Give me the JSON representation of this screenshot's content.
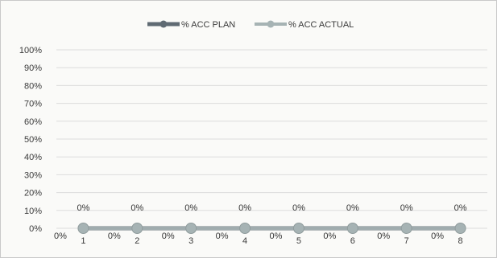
{
  "chart_data": {
    "type": "line",
    "x": [
      "1",
      "2",
      "3",
      "4",
      "5",
      "6",
      "7",
      "8"
    ],
    "series": [
      {
        "name": "% ACC PLAN",
        "values": [
          0,
          0,
          0,
          0,
          0,
          0,
          0,
          0
        ],
        "labels": [
          "0%",
          "0%",
          "0%",
          "0%",
          "0%",
          "0%",
          "0%",
          "0%"
        ],
        "color": "#5f6a73"
      },
      {
        "name": "% ACC ACTUAL",
        "values": [
          0,
          0,
          0,
          0,
          0,
          0,
          0,
          0
        ],
        "labels": [
          "0%",
          "0%",
          "0%",
          "0%",
          "0%",
          "0%",
          "0%",
          "0%"
        ],
        "color": "#a6b3b4"
      }
    ],
    "y_ticks": [
      "0%",
      "10%",
      "20%",
      "30%",
      "40%",
      "50%",
      "60%",
      "70%",
      "80%",
      "90%",
      "100%"
    ],
    "ylim": [
      0,
      100
    ],
    "grid": true,
    "legend": "top"
  }
}
